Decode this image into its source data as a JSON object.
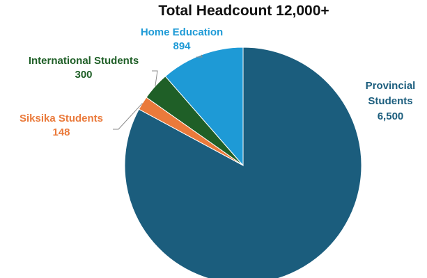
{
  "chart_data": {
    "type": "pie",
    "title": "Total Headcount 12,000+",
    "slices": [
      {
        "label": "Provincial Students",
        "value": 6500,
        "value_label": "6,500",
        "color": "#1b5d7d"
      },
      {
        "label": "Siksika Students",
        "value": 148,
        "value_label": "148",
        "color": "#ea7a3b"
      },
      {
        "label": "International Students",
        "value": 300,
        "value_label": "300",
        "color": "#1f5f27"
      },
      {
        "label": "Home Education",
        "value": 894,
        "value_label": "894",
        "color": "#1e9ad6"
      }
    ]
  }
}
